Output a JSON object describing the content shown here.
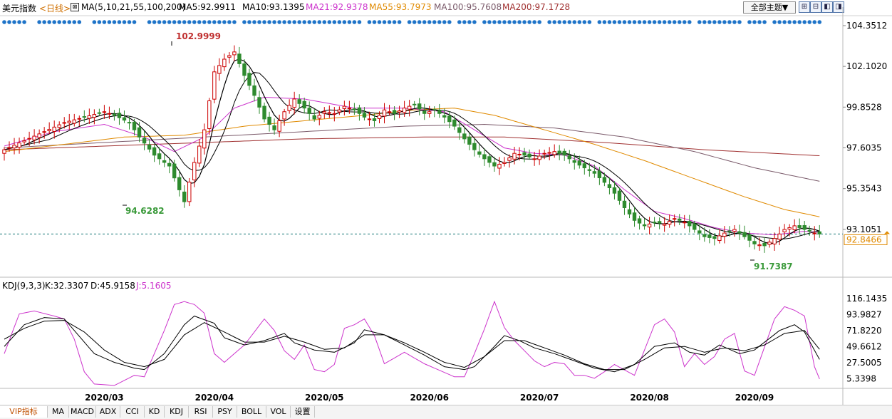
{
  "header": {
    "title": "美元指数",
    "period": "<日线>",
    "ma_label": "MA(5,10,21,55,100,200)",
    "ma5": "MA5:92.9911",
    "ma10": "MA10:93.1395",
    "ma21": "MA21:92.9378",
    "ma55": "MA55:93.7973",
    "ma100": "MA100:95.7608",
    "ma200": "MA200:97.1728",
    "theme_button": "全部主题▼"
  },
  "colors": {
    "ma5": "#000000",
    "ma10": "#000000",
    "ma21": "#cc33cc",
    "ma55": "#e08a00",
    "ma100": "#7a5a6a",
    "ma200": "#a03030",
    "up": "#cc0000",
    "down": "#2e8b2e",
    "dot": "#1f74c8",
    "k": "#000000",
    "d": "#000000",
    "j": "#cc33cc",
    "current_line": "#1a7a7a",
    "current_label": "#e08a00"
  },
  "icons": [
    "plus-grid-icon",
    "minus-grid-icon",
    "left-end-icon",
    "right-end-icon"
  ],
  "chart_data": [
    {
      "type": "candlestick",
      "title": "美元指数",
      "ylim": [
        90.7,
        104.9
      ],
      "y_ticks": [
        "104.3512",
        "102.1020",
        "99.8528",
        "97.6035",
        "95.3543",
        "93.1051"
      ],
      "y_tick_values": [
        104.3512,
        102.102,
        99.8528,
        97.6035,
        95.3543,
        93.1051
      ],
      "current_price": "92.8466",
      "current_value": 92.8466,
      "annotations": {
        "high": "102.9999",
        "low_march": "94.6282",
        "low_sept": "91.7387"
      },
      "x_labels": [
        "2020/03",
        "2020/04",
        "2020/05",
        "2020/06",
        "2020/07",
        "2020/08",
        "2020/09"
      ],
      "path": [
        [
          0,
          97.5
        ],
        [
          4,
          98.0
        ],
        [
          8,
          98.5
        ],
        [
          12,
          99.0
        ],
        [
          16,
          99.3
        ],
        [
          20,
          99.6
        ],
        [
          22,
          99.4
        ],
        [
          25,
          99.0
        ],
        [
          27,
          98.2
        ],
        [
          30,
          97.2
        ],
        [
          33,
          96.6
        ],
        [
          36,
          94.63
        ],
        [
          38,
          96.8
        ],
        [
          40,
          98.6
        ],
        [
          42,
          101.8
        ],
        [
          44,
          102.5
        ],
        [
          46,
          102.9
        ],
        [
          48,
          101.6
        ],
        [
          50,
          100.5
        ],
        [
          52,
          99.2
        ],
        [
          54,
          98.6
        ],
        [
          56,
          99.6
        ],
        [
          58,
          100.3
        ],
        [
          60,
          99.8
        ],
        [
          62,
          99.2
        ],
        [
          64,
          99.6
        ],
        [
          66,
          99.5
        ],
        [
          68,
          99.9
        ],
        [
          70,
          99.7
        ],
        [
          72,
          99.3
        ],
        [
          74,
          99.1
        ],
        [
          76,
          99.7
        ],
        [
          78,
          99.5
        ],
        [
          80,
          99.8
        ],
        [
          82,
          100.0
        ],
        [
          84,
          99.5
        ],
        [
          86,
          99.7
        ],
        [
          88,
          99.3
        ],
        [
          90,
          98.8
        ],
        [
          92,
          98.1
        ],
        [
          94,
          97.5
        ],
        [
          96,
          97.0
        ],
        [
          98,
          96.6
        ],
        [
          100,
          96.8
        ],
        [
          102,
          97.3
        ],
        [
          104,
          97.2
        ],
        [
          106,
          97.0
        ],
        [
          108,
          97.3
        ],
        [
          110,
          97.4
        ],
        [
          112,
          97.2
        ],
        [
          114,
          96.8
        ],
        [
          116,
          96.5
        ],
        [
          118,
          96.2
        ],
        [
          120,
          95.7
        ],
        [
          122,
          95.1
        ],
        [
          124,
          94.3
        ],
        [
          126,
          93.6
        ],
        [
          128,
          93.3
        ],
        [
          130,
          93.5
        ],
        [
          132,
          93.4
        ],
        [
          134,
          93.7
        ],
        [
          136,
          93.5
        ],
        [
          138,
          93.1
        ],
        [
          140,
          92.7
        ],
        [
          142,
          92.6
        ],
        [
          144,
          92.9
        ],
        [
          146,
          93.1
        ],
        [
          148,
          92.7
        ],
        [
          150,
          92.3
        ],
        [
          152,
          92.2
        ],
        [
          154,
          92.6
        ],
        [
          156,
          93.1
        ],
        [
          158,
          93.3
        ],
        [
          160,
          93.1
        ],
        [
          162,
          92.9
        ],
        [
          163,
          92.85
        ]
      ],
      "ma21": [
        [
          0,
          97.7
        ],
        [
          10,
          98.5
        ],
        [
          20,
          98.9
        ],
        [
          28,
          98.2
        ],
        [
          34,
          97.4
        ],
        [
          40,
          98.2
        ],
        [
          46,
          99.8
        ],
        [
          52,
          100.4
        ],
        [
          60,
          100.3
        ],
        [
          70,
          99.8
        ],
        [
          80,
          99.8
        ],
        [
          88,
          99.6
        ],
        [
          94,
          98.6
        ],
        [
          100,
          97.6
        ],
        [
          106,
          97.3
        ],
        [
          112,
          97.2
        ],
        [
          118,
          96.6
        ],
        [
          124,
          95.3
        ],
        [
          130,
          94.1
        ],
        [
          136,
          93.7
        ],
        [
          142,
          93.2
        ],
        [
          148,
          92.9
        ],
        [
          154,
          92.8
        ],
        [
          160,
          93.0
        ],
        [
          163,
          92.94
        ]
      ],
      "ma55": [
        [
          0,
          97.4
        ],
        [
          12,
          97.8
        ],
        [
          24,
          98.2
        ],
        [
          36,
          98.3
        ],
        [
          48,
          98.8
        ],
        [
          60,
          99.1
        ],
        [
          72,
          99.4
        ],
        [
          82,
          99.7
        ],
        [
          90,
          99.8
        ],
        [
          98,
          99.4
        ],
        [
          108,
          98.6
        ],
        [
          118,
          97.8
        ],
        [
          128,
          96.9
        ],
        [
          138,
          95.9
        ],
        [
          148,
          94.9
        ],
        [
          156,
          94.2
        ],
        [
          163,
          93.8
        ]
      ],
      "ma100": [
        [
          0,
          97.6
        ],
        [
          20,
          97.9
        ],
        [
          40,
          98.2
        ],
        [
          60,
          98.5
        ],
        [
          80,
          98.8
        ],
        [
          96,
          98.9
        ],
        [
          110,
          98.7
        ],
        [
          124,
          98.2
        ],
        [
          138,
          97.4
        ],
        [
          150,
          96.5
        ],
        [
          163,
          95.76
        ]
      ],
      "ma200": [
        [
          0,
          97.5
        ],
        [
          30,
          97.8
        ],
        [
          60,
          98.1
        ],
        [
          84,
          98.2
        ],
        [
          100,
          98.2
        ],
        [
          120,
          97.9
        ],
        [
          140,
          97.5
        ],
        [
          163,
          97.17
        ]
      ]
    },
    {
      "type": "line",
      "title": "KDJ(9,3,3)",
      "k_label": "K:32.3307",
      "d_label": "D:45.9158",
      "j_label": "J:5.1605",
      "ylim": [
        -8,
        128
      ],
      "y_ticks": [
        "116.1435",
        "93.9827",
        "71.8220",
        "49.6612",
        "27.5005",
        "5.3398"
      ],
      "y_tick_values": [
        116.1435,
        93.9827,
        71.822,
        49.6612,
        27.5005,
        5.3398
      ],
      "series": [
        {
          "name": "K",
          "values": [
            [
              0,
              50
            ],
            [
              4,
              80
            ],
            [
              8,
              90
            ],
            [
              12,
              88
            ],
            [
              14,
              72
            ],
            [
              18,
              40
            ],
            [
              22,
              28
            ],
            [
              26,
              20
            ],
            [
              28,
              18
            ],
            [
              32,
              40
            ],
            [
              36,
              80
            ],
            [
              38,
              92
            ],
            [
              42,
              82
            ],
            [
              44,
              62
            ],
            [
              48,
              52
            ],
            [
              52,
              58
            ],
            [
              56,
              68
            ],
            [
              58,
              55
            ],
            [
              62,
              45
            ],
            [
              66,
              42
            ],
            [
              70,
              55
            ],
            [
              72,
              73
            ],
            [
              76,
              66
            ],
            [
              80,
              52
            ],
            [
              84,
              38
            ],
            [
              88,
              22
            ],
            [
              92,
              18
            ],
            [
              94,
              22
            ],
            [
              98,
              50
            ],
            [
              100,
              65
            ],
            [
              103,
              58
            ],
            [
              106,
              48
            ],
            [
              110,
              40
            ],
            [
              114,
              30
            ],
            [
              118,
              20
            ],
            [
              122,
              15
            ],
            [
              126,
              25
            ],
            [
              130,
              50
            ],
            [
              134,
              55
            ],
            [
              137,
              42
            ],
            [
              140,
              38
            ],
            [
              143,
              52
            ],
            [
              147,
              40
            ],
            [
              150,
              45
            ],
            [
              155,
              72
            ],
            [
              158,
              80
            ],
            [
              160,
              70
            ],
            [
              163,
              32
            ]
          ]
        },
        {
          "name": "D",
          "values": [
            [
              0,
              60
            ],
            [
              4,
              75
            ],
            [
              8,
              85
            ],
            [
              12,
              86
            ],
            [
              16,
              70
            ],
            [
              20,
              45
            ],
            [
              24,
              28
            ],
            [
              28,
              22
            ],
            [
              32,
              32
            ],
            [
              36,
              66
            ],
            [
              40,
              83
            ],
            [
              44,
              70
            ],
            [
              48,
              56
            ],
            [
              52,
              56
            ],
            [
              56,
              64
            ],
            [
              60,
              56
            ],
            [
              64,
              46
            ],
            [
              68,
              48
            ],
            [
              72,
              66
            ],
            [
              76,
              66
            ],
            [
              80,
              55
            ],
            [
              84,
              42
            ],
            [
              88,
              28
            ],
            [
              92,
              21
            ],
            [
              96,
              36
            ],
            [
              100,
              58
            ],
            [
              104,
              58
            ],
            [
              108,
              48
            ],
            [
              112,
              38
            ],
            [
              116,
              26
            ],
            [
              120,
              18
            ],
            [
              124,
              18
            ],
            [
              128,
              32
            ],
            [
              132,
              48
            ],
            [
              136,
              50
            ],
            [
              140,
              42
            ],
            [
              144,
              48
            ],
            [
              148,
              44
            ],
            [
              152,
              52
            ],
            [
              156,
              68
            ],
            [
              160,
              72
            ],
            [
              163,
              46
            ]
          ]
        },
        {
          "name": "J",
          "values": [
            [
              0,
              40
            ],
            [
              3,
              95
            ],
            [
              6,
              99
            ],
            [
              10,
              92
            ],
            [
              12,
              88
            ],
            [
              14,
              60
            ],
            [
              16,
              15
            ],
            [
              18,
              -2
            ],
            [
              22,
              -4
            ],
            [
              26,
              10
            ],
            [
              28,
              8
            ],
            [
              32,
              72
            ],
            [
              34,
              108
            ],
            [
              36,
              112
            ],
            [
              38,
              108
            ],
            [
              40,
              96
            ],
            [
              42,
              40
            ],
            [
              44,
              28
            ],
            [
              48,
              52
            ],
            [
              52,
              88
            ],
            [
              54,
              72
            ],
            [
              56,
              44
            ],
            [
              58,
              32
            ],
            [
              60,
              52
            ],
            [
              62,
              18
            ],
            [
              64,
              15
            ],
            [
              66,
              25
            ],
            [
              68,
              75
            ],
            [
              70,
              80
            ],
            [
              72,
              88
            ],
            [
              74,
              65
            ],
            [
              76,
              26
            ],
            [
              80,
              42
            ],
            [
              84,
              26
            ],
            [
              86,
              20
            ],
            [
              90,
              8
            ],
            [
              92,
              8
            ],
            [
              94,
              40
            ],
            [
              96,
              74
            ],
            [
              98,
              112
            ],
            [
              100,
              76
            ],
            [
              102,
              58
            ],
            [
              106,
              30
            ],
            [
              108,
              22
            ],
            [
              110,
              28
            ],
            [
              112,
              26
            ],
            [
              114,
              10
            ],
            [
              116,
              10
            ],
            [
              118,
              6
            ],
            [
              120,
              15
            ],
            [
              122,
              25
            ],
            [
              126,
              10
            ],
            [
              130,
              80
            ],
            [
              132,
              88
            ],
            [
              134,
              70
            ],
            [
              136,
              22
            ],
            [
              138,
              40
            ],
            [
              140,
              25
            ],
            [
              142,
              36
            ],
            [
              144,
              60
            ],
            [
              146,
              68
            ],
            [
              148,
              16
            ],
            [
              150,
              10
            ],
            [
              154,
              88
            ],
            [
              156,
              105
            ],
            [
              158,
              100
            ],
            [
              160,
              92
            ],
            [
              162,
              22
            ],
            [
              163,
              5
            ]
          ]
        }
      ]
    }
  ],
  "bottom_tabs": [
    "VIP指标",
    "MA",
    "MACD",
    "ADX",
    "CCI",
    "KD",
    "KDJ",
    "RSI",
    "PSY",
    "BOLL",
    "VOL",
    "设置"
  ]
}
